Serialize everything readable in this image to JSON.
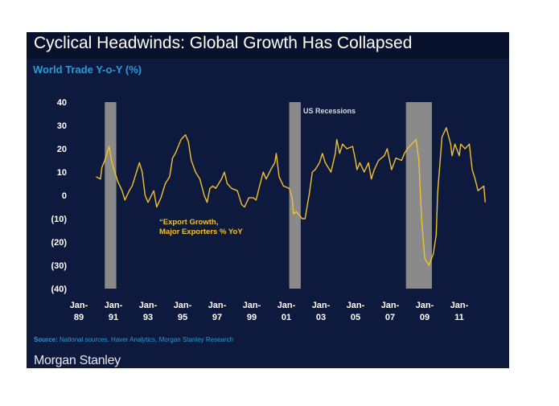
{
  "header": {
    "title": "Cyclical Headwinds: Global Growth Has Collapsed"
  },
  "chart_data": {
    "type": "line",
    "title": "World Trade Y-o-Y (%)",
    "ylim": [
      -40,
      40
    ],
    "yticks": [
      40,
      30,
      20,
      10,
      0,
      -10,
      -20,
      -30,
      -40
    ],
    "ytick_labels": [
      "40",
      "30",
      "20",
      "10",
      "0",
      "(10)",
      "(20)",
      "(30)",
      "(40)"
    ],
    "xlim": [
      "1989-01",
      "2012-12"
    ],
    "xticks": [
      "1989-01",
      "1991-01",
      "1993-01",
      "1995-01",
      "1997-01",
      "1999-01",
      "2001-01",
      "2003-01",
      "2005-01",
      "2007-01",
      "2009-01",
      "2011-01"
    ],
    "xtick_labels": [
      [
        "Jan-",
        "89"
      ],
      [
        "Jan-",
        "91"
      ],
      [
        "Jan-",
        "93"
      ],
      [
        "Jan-",
        "95"
      ],
      [
        "Jan-",
        "97"
      ],
      [
        "Jan-",
        "99"
      ],
      [
        "Jan-",
        "01"
      ],
      [
        "Jan-",
        "03"
      ],
      [
        "Jan-",
        "05"
      ],
      [
        "Jan-",
        "07"
      ],
      [
        "Jan-",
        "09"
      ],
      [
        "Jan-",
        "11"
      ]
    ],
    "grid": false,
    "series": [
      {
        "name": "“Export Growth, Major Exporters % YoY",
        "color": "#f2c12e",
        "points": [
          [
            "1990-01",
            8
          ],
          [
            "1990-04",
            7
          ],
          [
            "1990-05",
            12
          ],
          [
            "1990-07",
            15
          ],
          [
            "1990-10",
            21
          ],
          [
            "1990-12",
            14
          ],
          [
            "1991-02",
            10
          ],
          [
            "1991-04",
            6
          ],
          [
            "1991-07",
            2
          ],
          [
            "1991-09",
            -2
          ],
          [
            "1991-12",
            2
          ],
          [
            "1992-02",
            4
          ],
          [
            "1992-05",
            10
          ],
          [
            "1992-07",
            14
          ],
          [
            "1992-09",
            10
          ],
          [
            "1992-11",
            0
          ],
          [
            "1993-01",
            -3
          ],
          [
            "1993-05",
            2
          ],
          [
            "1993-07",
            -5
          ],
          [
            "1993-10",
            -1
          ],
          [
            "1994-01",
            5
          ],
          [
            "1994-04",
            8
          ],
          [
            "1994-06",
            16
          ],
          [
            "1994-08",
            18
          ],
          [
            "1994-10",
            21
          ],
          [
            "1994-12",
            24
          ],
          [
            "1995-03",
            26
          ],
          [
            "1995-05",
            23
          ],
          [
            "1995-07",
            15
          ],
          [
            "1995-10",
            10
          ],
          [
            "1996-01",
            7
          ],
          [
            "1996-04",
            0
          ],
          [
            "1996-06",
            -3
          ],
          [
            "1996-08",
            3
          ],
          [
            "1996-10",
            4
          ],
          [
            "1996-12",
            3
          ],
          [
            "1997-04",
            7
          ],
          [
            "1997-06",
            10
          ],
          [
            "1997-08",
            5
          ],
          [
            "1997-11",
            3
          ],
          [
            "1998-03",
            2
          ],
          [
            "1998-06",
            -4
          ],
          [
            "1998-08",
            -5
          ],
          [
            "1998-11",
            -1
          ],
          [
            "1999-02",
            -1
          ],
          [
            "1999-04",
            -2
          ],
          [
            "1999-06",
            3
          ],
          [
            "1999-09",
            10
          ],
          [
            "1999-11",
            7
          ],
          [
            "2000-03",
            12
          ],
          [
            "2000-05",
            14
          ],
          [
            "2000-06",
            18
          ],
          [
            "2000-08",
            8
          ],
          [
            "2000-11",
            4
          ],
          [
            "2001-03",
            3
          ],
          [
            "2001-05",
            -1
          ],
          [
            "2001-06",
            -8
          ],
          [
            "2001-08",
            -7
          ],
          [
            "2001-12",
            -10
          ],
          [
            "2002-02",
            -10
          ],
          [
            "2002-05",
            1
          ],
          [
            "2002-07",
            10
          ],
          [
            "2002-09",
            11
          ],
          [
            "2002-12",
            14
          ],
          [
            "2003-02",
            18
          ],
          [
            "2003-04",
            14
          ],
          [
            "2003-06",
            12
          ],
          [
            "2003-08",
            10
          ],
          [
            "2003-11",
            18
          ],
          [
            "2003-12",
            24
          ],
          [
            "2004-02",
            18
          ],
          [
            "2004-04",
            22
          ],
          [
            "2004-07",
            20
          ],
          [
            "2004-11",
            21
          ],
          [
            "2005-01",
            15
          ],
          [
            "2005-02",
            11
          ],
          [
            "2005-04",
            14
          ],
          [
            "2005-07",
            10
          ],
          [
            "2005-10",
            14
          ],
          [
            "2005-12",
            7
          ],
          [
            "2006-02",
            11
          ],
          [
            "2006-05",
            15
          ],
          [
            "2006-09",
            17
          ],
          [
            "2006-11",
            20
          ],
          [
            "2007-02",
            11
          ],
          [
            "2007-05",
            16
          ],
          [
            "2007-09",
            15
          ],
          [
            "2007-11",
            18
          ],
          [
            "2008-01",
            20
          ],
          [
            "2008-04",
            22
          ],
          [
            "2008-07",
            24
          ],
          [
            "2008-09",
            15
          ],
          [
            "2008-10",
            1
          ],
          [
            "2008-11",
            -11
          ],
          [
            "2009-01",
            -27
          ],
          [
            "2009-04",
            -30
          ],
          [
            "2009-07",
            -25
          ],
          [
            "2009-09",
            -17
          ],
          [
            "2009-10",
            1
          ],
          [
            "2010-01",
            25
          ],
          [
            "2010-04",
            29
          ],
          [
            "2010-07",
            22
          ],
          [
            "2010-08",
            17
          ],
          [
            "2010-10",
            22
          ],
          [
            "2011-01",
            17
          ],
          [
            "2011-02",
            22
          ],
          [
            "2011-05",
            20
          ],
          [
            "2011-08",
            22
          ],
          [
            "2011-10",
            11
          ],
          [
            "2011-12",
            7
          ],
          [
            "2012-02",
            2
          ],
          [
            "2012-04",
            3
          ],
          [
            "2012-06",
            4
          ],
          [
            "2012-07",
            -3
          ]
        ]
      }
    ],
    "recessions": {
      "label": "US Recessions",
      "color": "#8a8a8a",
      "periods": [
        [
          "1990-07",
          "1991-03"
        ],
        [
          "2001-03",
          "2001-11"
        ],
        [
          "2007-12",
          "2009-06"
        ]
      ]
    },
    "annotations": [
      "“Export Growth,",
      "Major Exporters % YoY"
    ]
  },
  "footer": {
    "source_label": "Source:",
    "source_text": " National sources, Haver Analytics, Morgan Stanley Research",
    "logo": "Morgan Stanley"
  }
}
